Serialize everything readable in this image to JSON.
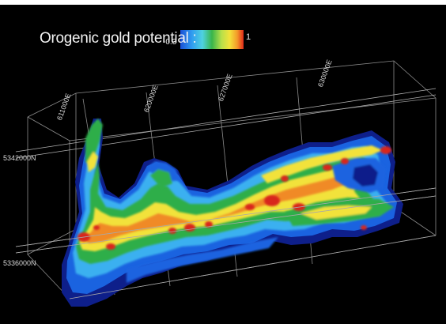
{
  "legend": {
    "title": "Orogenic gold  potential :",
    "min_label": "-0.3",
    "max_label": "1",
    "gradient_colors": [
      "#1a4fd6",
      "#2f9bf0",
      "#4fd2e0",
      "#39b54a",
      "#b7e04a",
      "#f3e23a",
      "#f39a2a",
      "#e02a1a"
    ]
  },
  "axis_labels": {
    "northing_top": "5342000N",
    "northing_bottom": "5336000N",
    "eastings": [
      "611000E",
      "620000E",
      "627000E",
      "630000E"
    ]
  },
  "colors": {
    "background": "#000000",
    "frame": "#9a9a9a",
    "deep_blue": "#10208a",
    "blue": "#1a63e0",
    "light_blue": "#3bb0f0",
    "green": "#2fae4a",
    "yellow": "#f2e23b",
    "orange": "#f08a25",
    "red": "#d8261a"
  }
}
